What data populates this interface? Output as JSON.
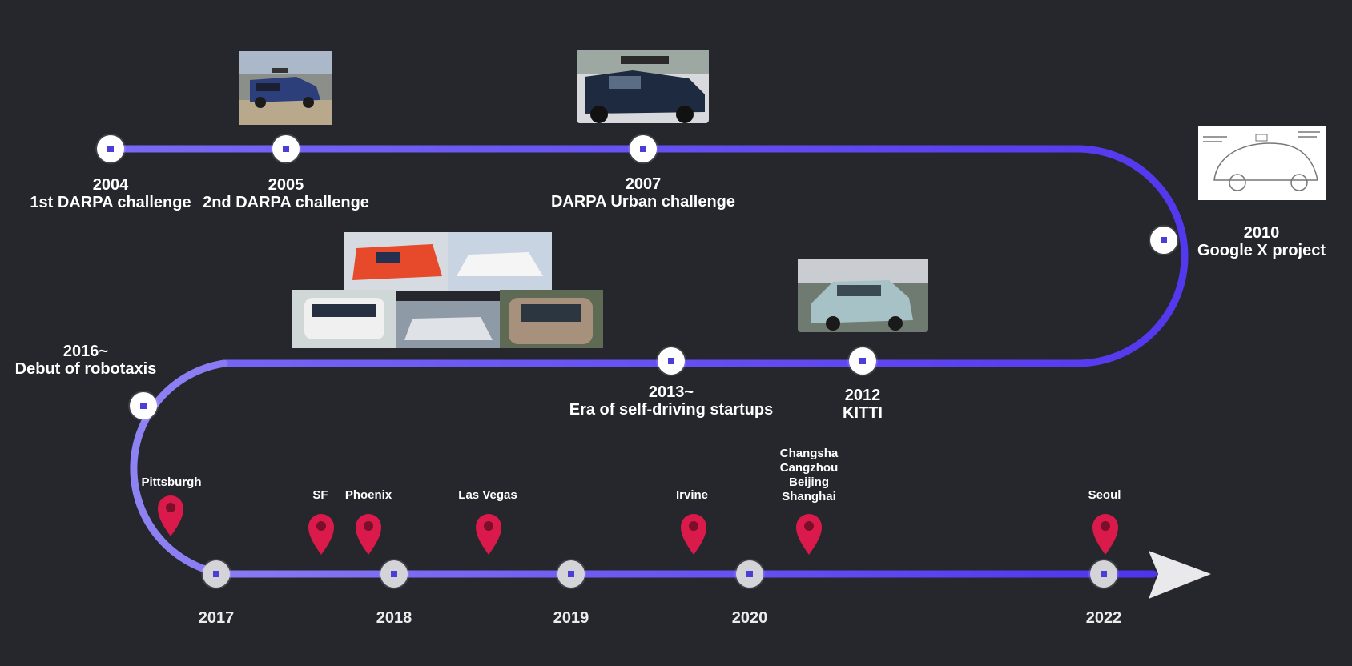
{
  "colors": {
    "background": "#26272d",
    "track": "#5b48f0",
    "track_light": "#8c7cf5",
    "node": "#ffffff",
    "node_dot": "#4a3ed6",
    "pin": "#d91a4a"
  },
  "milestones": [
    {
      "year": "2004",
      "text": "1st DARPA challenge"
    },
    {
      "year": "2005",
      "text": "2nd DARPA challenge"
    },
    {
      "year": "2007",
      "text": "DARPA Urban challenge"
    },
    {
      "year": "2010",
      "text": "Google X project"
    },
    {
      "year": "2012",
      "text": "KITTI"
    },
    {
      "year": "2013~",
      "text": "Era of self-driving startups"
    },
    {
      "year": "2016~",
      "text": "Debut of robotaxis"
    }
  ],
  "timeline_years": [
    "2017",
    "2018",
    "2019",
    "2020",
    "2022"
  ],
  "cities": [
    {
      "name": "Pittsburgh"
    },
    {
      "name": "SF"
    },
    {
      "name": "Phoenix"
    },
    {
      "name": "Las Vegas"
    },
    {
      "name": "Irvine"
    },
    {
      "name": "Changsha\nCangzhou\nBeijing\nShanghai"
    },
    {
      "name": "Seoul"
    }
  ],
  "images": [
    {
      "name": "darpa-2005-vehicle-image",
      "icon": "suv-photo"
    },
    {
      "name": "darpa-2007-vehicle-image",
      "icon": "pickup-photo"
    },
    {
      "name": "google-car-sketch-image",
      "icon": "car-sketch"
    },
    {
      "name": "kitti-vehicle-image",
      "icon": "wagon-photo"
    },
    {
      "name": "robotaxi-collage-image",
      "icon": "collage-photo"
    }
  ]
}
